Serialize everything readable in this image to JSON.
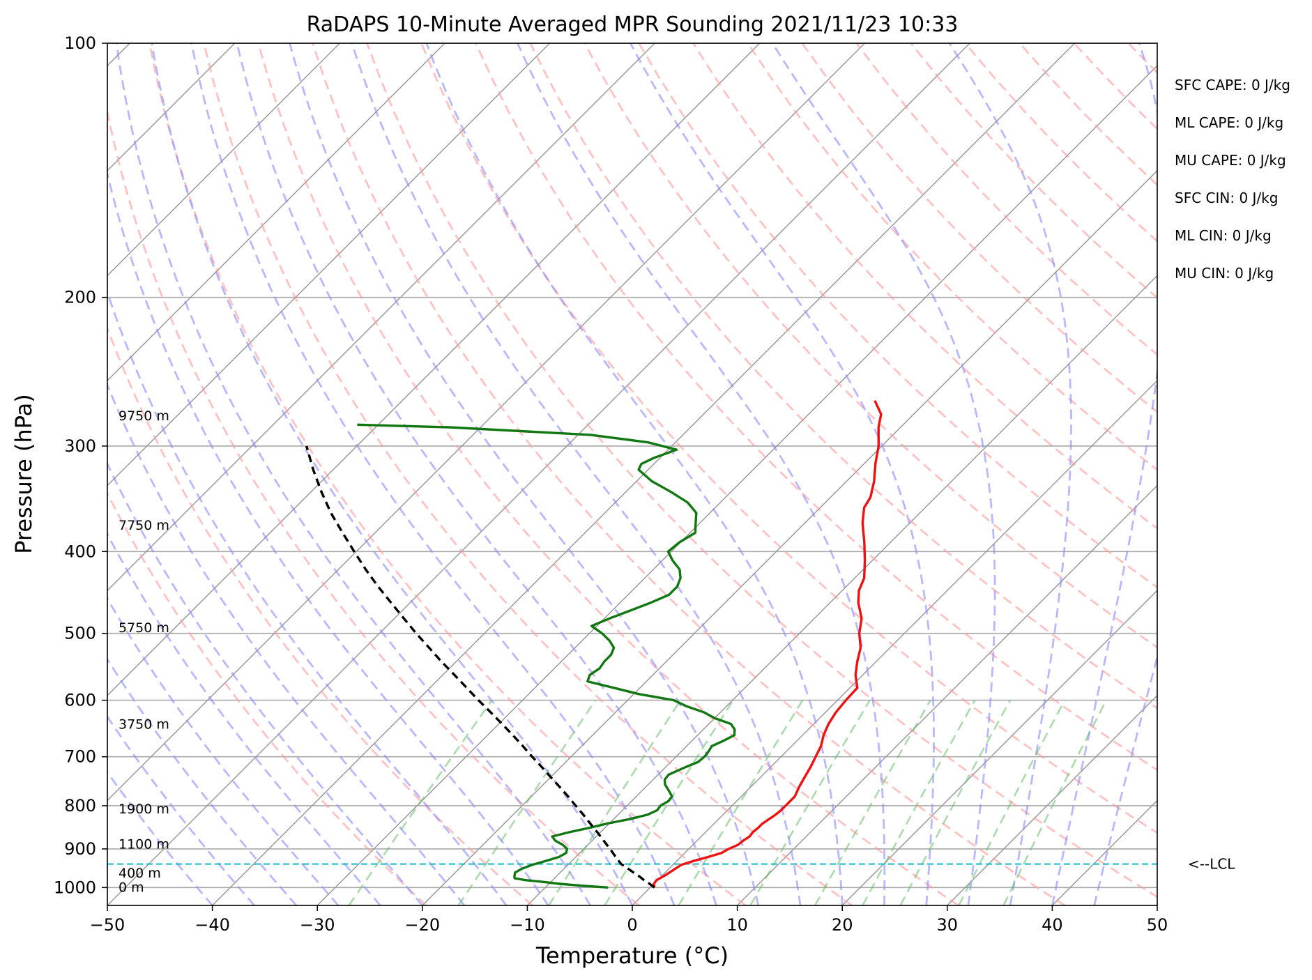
{
  "chart_data": {
    "type": "line",
    "title": "RaDAPS 10-Minute Averaged MPR Sounding 2021/11/23 10:33",
    "xlabel": "Temperature (°C)",
    "ylabel": "Pressure (hPa)",
    "xlim": [
      -50,
      50
    ],
    "ylim": [
      1050,
      100
    ],
    "y_scale": "log",
    "skew": "temperature isotherms skewed 45°",
    "x_ticks": [
      "−50",
      "−40",
      "−30",
      "−20",
      "−10",
      "0",
      "10",
      "20",
      "30",
      "40",
      "50"
    ],
    "y_ticks": [
      "100",
      "200",
      "300",
      "400",
      "500",
      "600",
      "700",
      "800",
      "900",
      "1000"
    ],
    "grid": true,
    "colors": {
      "temperature": "#ee1111",
      "dewpoint": "#117711",
      "parcel": "#000000",
      "lcl": "#11bbcc",
      "dry_adiabats": "#ff9999",
      "moist_adiabats": "#8888ff",
      "mixing_ratio": "#66bb66",
      "isotherms": "#999999",
      "isobars": "#aaaaaa"
    },
    "series": [
      {
        "id": "temperature",
        "points": [
          [
            1000,
            0.4
          ],
          [
            990,
            0.0
          ],
          [
            980,
            -0.1
          ],
          [
            970,
            0.2
          ],
          [
            960,
            0.4
          ],
          [
            950,
            0.6
          ],
          [
            940,
            0.8
          ],
          [
            930,
            1.6
          ],
          [
            920,
            2.6
          ],
          [
            910,
            3.5
          ],
          [
            900,
            3.8
          ],
          [
            890,
            4.3
          ],
          [
            880,
            4.4
          ],
          [
            870,
            4.6
          ],
          [
            860,
            4.5
          ],
          [
            850,
            4.6
          ],
          [
            840,
            4.6
          ],
          [
            830,
            4.8
          ],
          [
            820,
            5.0
          ],
          [
            810,
            5.1
          ],
          [
            800,
            5.1
          ],
          [
            780,
            5.1
          ],
          [
            760,
            4.6
          ],
          [
            740,
            4.2
          ],
          [
            720,
            3.8
          ],
          [
            700,
            3.3
          ],
          [
            680,
            2.8
          ],
          [
            660,
            2.0
          ],
          [
            640,
            1.4
          ],
          [
            620,
            1.0
          ],
          [
            600,
            0.8
          ],
          [
            580,
            0.7
          ],
          [
            560,
            -0.7
          ],
          [
            540,
            -1.8
          ],
          [
            520,
            -2.8
          ],
          [
            500,
            -4.3
          ],
          [
            480,
            -5.5
          ],
          [
            460,
            -7.3
          ],
          [
            445,
            -8.4
          ],
          [
            430,
            -9.1
          ],
          [
            410,
            -10.7
          ],
          [
            390,
            -12.5
          ],
          [
            370,
            -14.5
          ],
          [
            355,
            -15.8
          ],
          [
            345,
            -16.2
          ],
          [
            330,
            -17.4
          ],
          [
            315,
            -18.9
          ],
          [
            300,
            -20.3
          ],
          [
            285,
            -22.1
          ],
          [
            275,
            -23.1
          ],
          [
            265,
            -25.0
          ]
        ]
      },
      {
        "id": "dewpoint",
        "points": [
          [
            1000,
            -4.0
          ],
          [
            995,
            -6.7
          ],
          [
            990,
            -9.0
          ],
          [
            985,
            -10.6
          ],
          [
            980,
            -12.6
          ],
          [
            975,
            -13.8
          ],
          [
            970,
            -14.0
          ],
          [
            960,
            -14.3
          ],
          [
            950,
            -14.0
          ],
          [
            940,
            -13.4
          ],
          [
            930,
            -12.5
          ],
          [
            920,
            -11.6
          ],
          [
            910,
            -11.3
          ],
          [
            900,
            -11.6
          ],
          [
            890,
            -12.4
          ],
          [
            880,
            -13.5
          ],
          [
            870,
            -14.2
          ],
          [
            860,
            -13.0
          ],
          [
            850,
            -11.5
          ],
          [
            840,
            -10.2
          ],
          [
            830,
            -8.5
          ],
          [
            820,
            -7.2
          ],
          [
            810,
            -6.7
          ],
          [
            800,
            -6.8
          ],
          [
            790,
            -6.5
          ],
          [
            780,
            -6.6
          ],
          [
            770,
            -7.3
          ],
          [
            755,
            -8.4
          ],
          [
            745,
            -8.9
          ],
          [
            735,
            -9.0
          ],
          [
            720,
            -8.1
          ],
          [
            710,
            -7.4
          ],
          [
            700,
            -7.3
          ],
          [
            690,
            -7.4
          ],
          [
            680,
            -7.6
          ],
          [
            670,
            -7.0
          ],
          [
            660,
            -6.5
          ],
          [
            650,
            -7.0
          ],
          [
            640,
            -7.9
          ],
          [
            630,
            -10.0
          ],
          [
            620,
            -11.6
          ],
          [
            610,
            -13.8
          ],
          [
            600,
            -15.6
          ],
          [
            590,
            -19.5
          ],
          [
            580,
            -22.5
          ],
          [
            570,
            -25.6
          ],
          [
            560,
            -26.0
          ],
          [
            550,
            -25.7
          ],
          [
            540,
            -25.9
          ],
          [
            530,
            -25.9
          ],
          [
            520,
            -26.3
          ],
          [
            510,
            -27.4
          ],
          [
            500,
            -28.8
          ],
          [
            490,
            -30.5
          ],
          [
            480,
            -29.5
          ],
          [
            470,
            -28.3
          ],
          [
            460,
            -27.1
          ],
          [
            450,
            -26.1
          ],
          [
            440,
            -26.1
          ],
          [
            430,
            -26.6
          ],
          [
            420,
            -27.5
          ],
          [
            410,
            -29.0
          ],
          [
            400,
            -30.3
          ],
          [
            390,
            -30.1
          ],
          [
            380,
            -29.5
          ],
          [
            370,
            -30.4
          ],
          [
            360,
            -31.3
          ],
          [
            350,
            -33.1
          ],
          [
            340,
            -35.7
          ],
          [
            330,
            -38.6
          ],
          [
            320,
            -40.9
          ],
          [
            315,
            -41.2
          ],
          [
            310,
            -40.6
          ],
          [
            303,
            -39.2
          ],
          [
            297,
            -42.6
          ],
          [
            291,
            -48.8
          ],
          [
            285,
            -63.0
          ],
          [
            283,
            -72.0
          ]
        ]
      },
      {
        "id": "parcel",
        "points": [
          [
            1000,
            0.4
          ],
          [
            990,
            -0.4
          ],
          [
            980,
            -1.3
          ],
          [
            970,
            -2.1
          ],
          [
            960,
            -3.0
          ],
          [
            950,
            -3.9
          ],
          [
            940,
            -4.8
          ],
          [
            938,
            -5.0
          ],
          [
            920,
            -6.2
          ],
          [
            900,
            -7.5
          ],
          [
            880,
            -8.9
          ],
          [
            860,
            -10.3
          ],
          [
            840,
            -11.8
          ],
          [
            820,
            -13.3
          ],
          [
            800,
            -14.9
          ],
          [
            780,
            -16.5
          ],
          [
            760,
            -18.2
          ],
          [
            740,
            -20.0
          ],
          [
            720,
            -21.8
          ],
          [
            700,
            -23.7
          ],
          [
            680,
            -25.6
          ],
          [
            660,
            -27.6
          ],
          [
            640,
            -29.7
          ],
          [
            620,
            -31.9
          ],
          [
            600,
            -34.2
          ],
          [
            580,
            -36.5
          ],
          [
            560,
            -38.9
          ],
          [
            540,
            -41.4
          ],
          [
            520,
            -43.9
          ],
          [
            500,
            -46.5
          ],
          [
            480,
            -49.1
          ],
          [
            460,
            -51.8
          ],
          [
            440,
            -54.6
          ],
          [
            420,
            -57.4
          ],
          [
            400,
            -60.2
          ],
          [
            380,
            -63.1
          ],
          [
            360,
            -66.1
          ],
          [
            340,
            -69.0
          ],
          [
            320,
            -71.9
          ],
          [
            300,
            -74.8
          ]
        ]
      }
    ],
    "lcl_pressure": 938,
    "lcl_label": "<--LCL",
    "height_labels": [
      {
        "text": "9750 m",
        "p": 276
      },
      {
        "text": "7750 m",
        "p": 372
      },
      {
        "text": "5750 m",
        "p": 492
      },
      {
        "text": "3750 m",
        "p": 640
      },
      {
        "text": "1900 m",
        "p": 806
      },
      {
        "text": "1100 m",
        "p": 887
      },
      {
        "text": "400 m",
        "p": 960
      },
      {
        "text": "0 m",
        "p": 998
      }
    ],
    "indices": [
      "SFC CAPE: 0 J/kg",
      "ML CAPE: 0 J/kg",
      "MU CAPE: 0 J/kg",
      "SFC CIN: 0 J/kg",
      "ML CIN: 0 J/kg",
      "MU CIN: 0 J/kg"
    ]
  }
}
